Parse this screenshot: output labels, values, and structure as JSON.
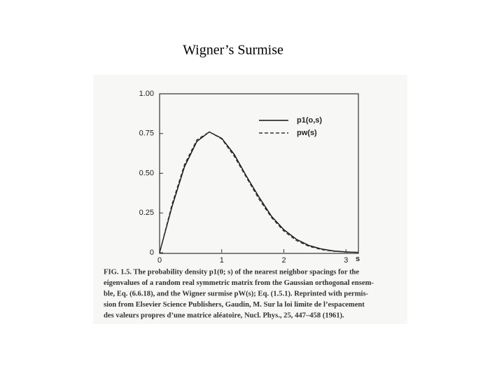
{
  "chart_data": {
    "type": "line",
    "title": "Wigner’s Surmise",
    "x_label": "s",
    "x": [
      0,
      0.2,
      0.4,
      0.6,
      0.8,
      1.0,
      1.2,
      1.4,
      1.6,
      1.8,
      2.0,
      2.2,
      2.4,
      2.6,
      2.8,
      3.0,
      3.2
    ],
    "series": [
      {
        "name": "p1(o,s)",
        "color": "#111111",
        "dashed": false,
        "values": [
          0,
          0.29,
          0.54,
          0.7,
          0.76,
          0.72,
          0.62,
          0.48,
          0.35,
          0.23,
          0.145,
          0.085,
          0.046,
          0.024,
          0.011,
          0.005,
          0.002
        ]
      },
      {
        "name": "pw(s)",
        "color": "#333333",
        "dashed": true,
        "values": [
          0,
          0.304,
          0.554,
          0.71,
          0.76,
          0.716,
          0.608,
          0.472,
          0.337,
          0.222,
          0.136,
          0.077,
          0.041,
          0.02,
          0.009,
          0.004,
          0.002
        ]
      }
    ],
    "xlim": [
      0,
      3.2
    ],
    "ylim": [
      0,
      1
    ],
    "xticks": [
      0,
      1,
      2,
      3
    ],
    "yticks": [
      0,
      {
        "value": 0.25,
        "label": "0.25"
      },
      {
        "value": 0.5,
        "label": "0.50"
      },
      {
        "value": 0.75,
        "label": "0.75"
      },
      {
        "value": 1,
        "label": "1.00"
      }
    ],
    "grid": false,
    "legend": "top-right",
    "caption": [
      "FIG. 1.5. The probability density p1(0; s) of the nearest neighbor spacings for the",
      "eigenvalues of a random real symmetric matrix from the Gaussian orthogonal ensem-",
      "ble, Eq. (6.6.18), and the Wigner surmise pW(s); Eq. (1.5.1). Reprinted with permis-",
      "sion from Elsevier Science Publishers, Gaudin, M. Sur la loi limite de l’espacement",
      "des valeurs propres d’une matrice aléatoire, Nucl. Phys., 25, 447–458 (1961)."
    ]
  }
}
